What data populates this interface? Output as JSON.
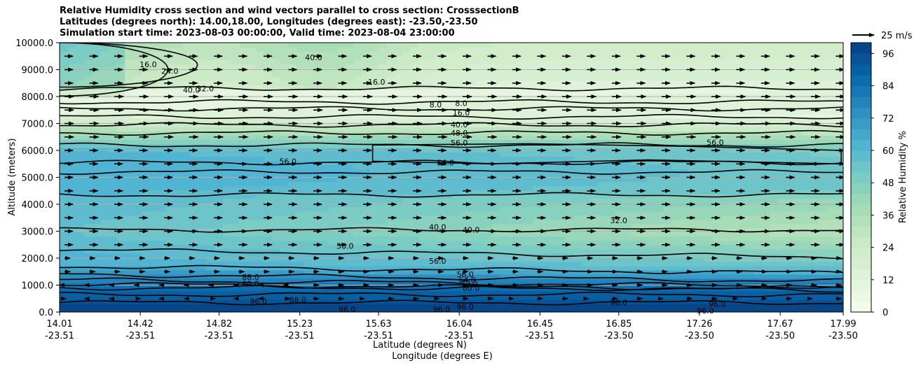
{
  "chart_data": {
    "type": "contour",
    "title_lines": [
      "Relative Humidity cross section and wind vectors parallel to cross section: CrosssectionB",
      "Latitudes (degrees north): 14.00,18.00, Longitudes (degrees east): -23.50,-23.50",
      "Simulation start time: 2023-08-03 00:00:00, Valid time: 2023-08-04 23:00:00"
    ],
    "ylabel": "Altitude (meters)",
    "xlabel_lat": "Latitude (degrees N)",
    "xlabel_lon": "Longitude (degrees E)",
    "ylim": [
      0,
      10000
    ],
    "yticks": [
      "0.0",
      "1000.0",
      "2000.0",
      "3000.0",
      "4000.0",
      "5000.0",
      "6000.0",
      "7000.0",
      "8000.0",
      "9000.0",
      "10000.0"
    ],
    "xticks_lat": [
      "14.01",
      "14.42",
      "14.82",
      "15.23",
      "15.63",
      "16.04",
      "16.45",
      "16.85",
      "17.26",
      "17.67",
      "17.99"
    ],
    "xticks_lon": [
      "-23.51",
      "-23.51",
      "-23.51",
      "-23.51",
      "-23.51",
      "-23.51",
      "-23.51",
      "-23.50",
      "-23.50",
      "-23.50",
      "-23.50"
    ],
    "colorbar_label": "Relative Humidity %",
    "colorbar_ticks": [
      "0",
      "12",
      "24",
      "36",
      "48",
      "60",
      "72",
      "84",
      "96"
    ],
    "colorbar_range": [
      0,
      100
    ],
    "quiver_key_label": "25 m/s",
    "contour_levels": [
      8,
      16,
      24,
      32,
      40,
      48,
      56,
      64,
      72,
      80,
      88,
      96
    ],
    "contour_labels": [
      {
        "text": "8.0",
        "lat": 15.92,
        "alt": 7700
      },
      {
        "text": "8.0",
        "lat": 16.05,
        "alt": 7750
      },
      {
        "text": "16.0",
        "lat": 16.05,
        "alt": 7400
      },
      {
        "text": "16.0",
        "lat": 15.62,
        "alt": 8550
      },
      {
        "text": "16.0",
        "lat": 14.46,
        "alt": 9200
      },
      {
        "text": "24.0",
        "lat": 14.57,
        "alt": 8950
      },
      {
        "text": "32.0",
        "lat": 14.75,
        "alt": 8300
      },
      {
        "text": "40.0",
        "lat": 14.68,
        "alt": 8250
      },
      {
        "text": "40.0",
        "lat": 15.3,
        "alt": 9450
      },
      {
        "text": "40.0",
        "lat": 16.04,
        "alt": 6960
      },
      {
        "text": "48.0",
        "lat": 16.04,
        "alt": 6650
      },
      {
        "text": "56.0",
        "lat": 16.04,
        "alt": 6280
      },
      {
        "text": "56.0",
        "lat": 15.97,
        "alt": 5550
      },
      {
        "text": "56.0",
        "lat": 15.17,
        "alt": 5600
      },
      {
        "text": "56.0",
        "lat": 17.34,
        "alt": 6300
      },
      {
        "text": "32.0",
        "lat": 16.85,
        "alt": 3400
      },
      {
        "text": "40.0",
        "lat": 15.93,
        "alt": 3150
      },
      {
        "text": "40.0",
        "lat": 16.1,
        "alt": 3050
      },
      {
        "text": "56.0",
        "lat": 15.46,
        "alt": 2450
      },
      {
        "text": "56.0",
        "lat": 15.93,
        "alt": 1900
      },
      {
        "text": "56.0",
        "lat": 16.07,
        "alt": 1400
      },
      {
        "text": "64.0",
        "lat": 16.08,
        "alt": 1200
      },
      {
        "text": "72.0",
        "lat": 16.09,
        "alt": 1050
      },
      {
        "text": "80.0",
        "lat": 16.1,
        "alt": 900
      },
      {
        "text": "80.0",
        "lat": 14.98,
        "alt": 1050
      },
      {
        "text": "88.0",
        "lat": 14.98,
        "alt": 1300
      },
      {
        "text": "88.0",
        "lat": 15.22,
        "alt": 450
      },
      {
        "text": "96.0",
        "lat": 15.02,
        "alt": 400
      },
      {
        "text": "96.0",
        "lat": 15.47,
        "alt": 100
      },
      {
        "text": "96.0",
        "lat": 15.95,
        "alt": 100
      },
      {
        "text": "96.0",
        "lat": 16.07,
        "alt": 200
      },
      {
        "text": "96.0",
        "lat": 16.85,
        "alt": 350
      },
      {
        "text": "96.0",
        "lat": 17.29,
        "alt": 50
      },
      {
        "text": "96.0",
        "lat": 17.35,
        "alt": 300
      }
    ]
  }
}
